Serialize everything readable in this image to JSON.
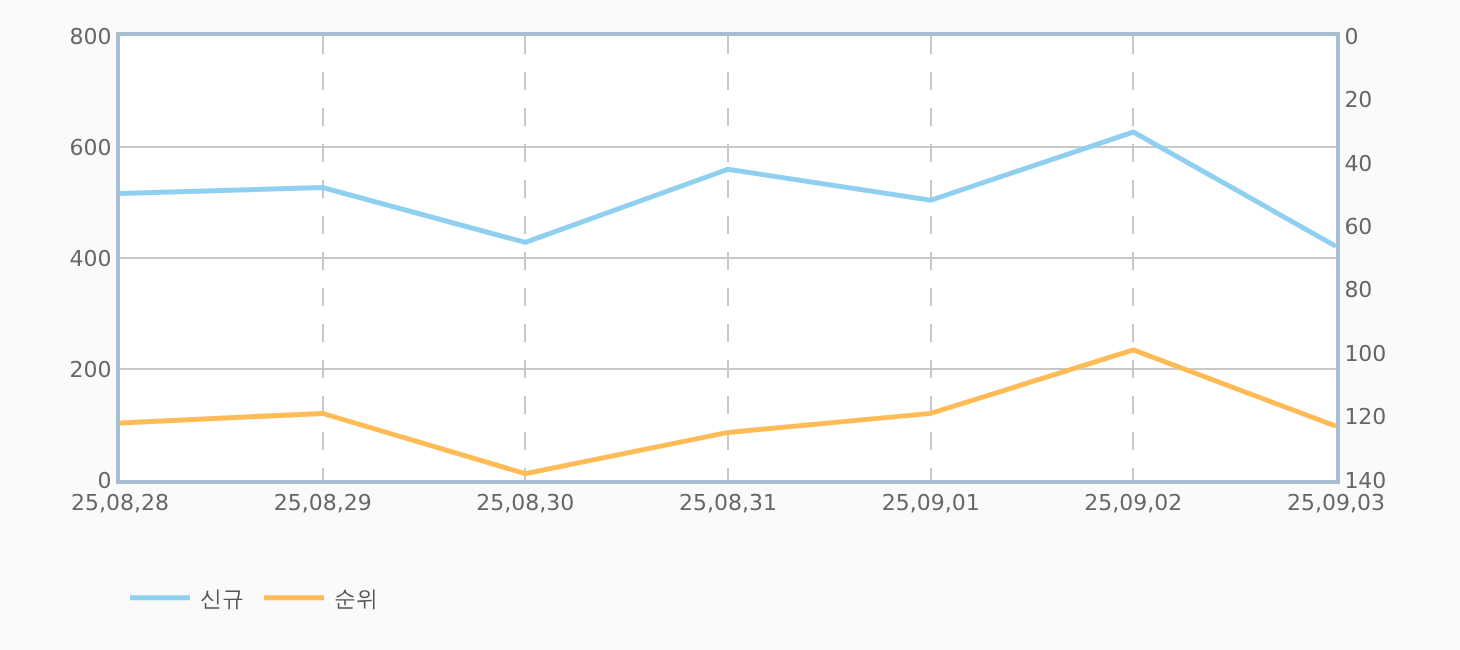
{
  "chart_data": {
    "type": "line",
    "categories": [
      "25,08,28",
      "25,08,29",
      "25,08,30",
      "25,08,31",
      "25,09,01",
      "25,09,02",
      "25,09,03"
    ],
    "series": [
      {
        "name": "신규",
        "color": "#8fd0f0",
        "values": [
          516,
          527,
          428,
          560,
          504,
          627,
          421
        ]
      },
      {
        "name": "순위",
        "color": "#ffbb55",
        "axis": "y2",
        "values": [
          122,
          119,
          138,
          125,
          119,
          99,
          123
        ]
      }
    ],
    "ylim": [
      0,
      800
    ],
    "yticks": [
      0,
      200,
      400,
      600,
      800
    ],
    "y2lim": [
      140,
      0
    ],
    "y2ticks": [
      0,
      20,
      40,
      60,
      80,
      100,
      120,
      140
    ],
    "grid": true,
    "legend": "bottom left",
    "marker": "none",
    "line_style": "solid"
  }
}
